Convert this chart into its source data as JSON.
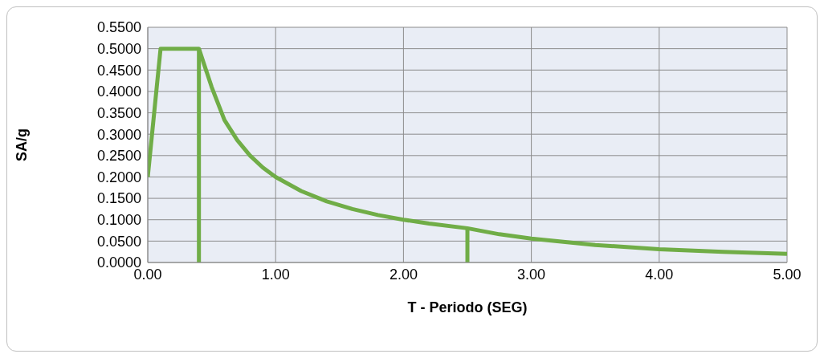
{
  "chart_data": {
    "type": "line",
    "xlabel": "T - Periodo (SEG)",
    "ylabel": "SA/g",
    "marker": "none",
    "grid": true,
    "xlim": [
      0,
      5
    ],
    "xticks": [
      {
        "value": 0,
        "label": "0.00"
      },
      {
        "value": 1,
        "label": "1.00"
      },
      {
        "value": 2,
        "label": "2.00"
      },
      {
        "value": 3,
        "label": "3.00"
      },
      {
        "value": 4,
        "label": "4.00"
      },
      {
        "value": 5,
        "label": "5.00"
      }
    ],
    "ylim": [
      0,
      0.55
    ],
    "yticks": [
      {
        "value": 0,
        "label": "0.0000"
      },
      {
        "value": 0.05,
        "label": "0.0500"
      },
      {
        "value": 0.1,
        "label": "0.1000"
      },
      {
        "value": 0.15,
        "label": "0.1500"
      },
      {
        "value": 0.2,
        "label": "0.2000"
      },
      {
        "value": 0.25,
        "label": "0.2500"
      },
      {
        "value": 0.3,
        "label": "0.3000"
      },
      {
        "value": 0.35,
        "label": "0.3500"
      },
      {
        "value": 0.4,
        "label": "0.4000"
      },
      {
        "value": 0.45,
        "label": "0.4500"
      },
      {
        "value": 0.5,
        "label": "0.5000"
      },
      {
        "value": 0.55,
        "label": "0.5500"
      }
    ],
    "series": [
      {
        "color": "#70ad47",
        "x": [
          0,
          0.1,
          0.4,
          0.5,
          0.6,
          0.7,
          0.8,
          0.9,
          1.0,
          1.2,
          1.4,
          1.6,
          1.8,
          2.0,
          2.2,
          2.5,
          2.75,
          3.0,
          3.5,
          4.0,
          4.5,
          5.0
        ],
        "values": [
          0.2,
          0.5,
          0.5,
          0.41,
          0.333,
          0.286,
          0.25,
          0.222,
          0.2,
          0.167,
          0.143,
          0.125,
          0.111,
          0.1,
          0.091,
          0.08,
          0.066,
          0.056,
          0.041,
          0.031,
          0.025,
          0.02
        ]
      },
      {
        "color": "#70ad47",
        "x": [
          0.4,
          0.4
        ],
        "values": [
          0,
          0.5
        ]
      },
      {
        "color": "#70ad47",
        "x": [
          2.5,
          2.5
        ],
        "values": [
          0,
          0.08
        ]
      }
    ]
  }
}
